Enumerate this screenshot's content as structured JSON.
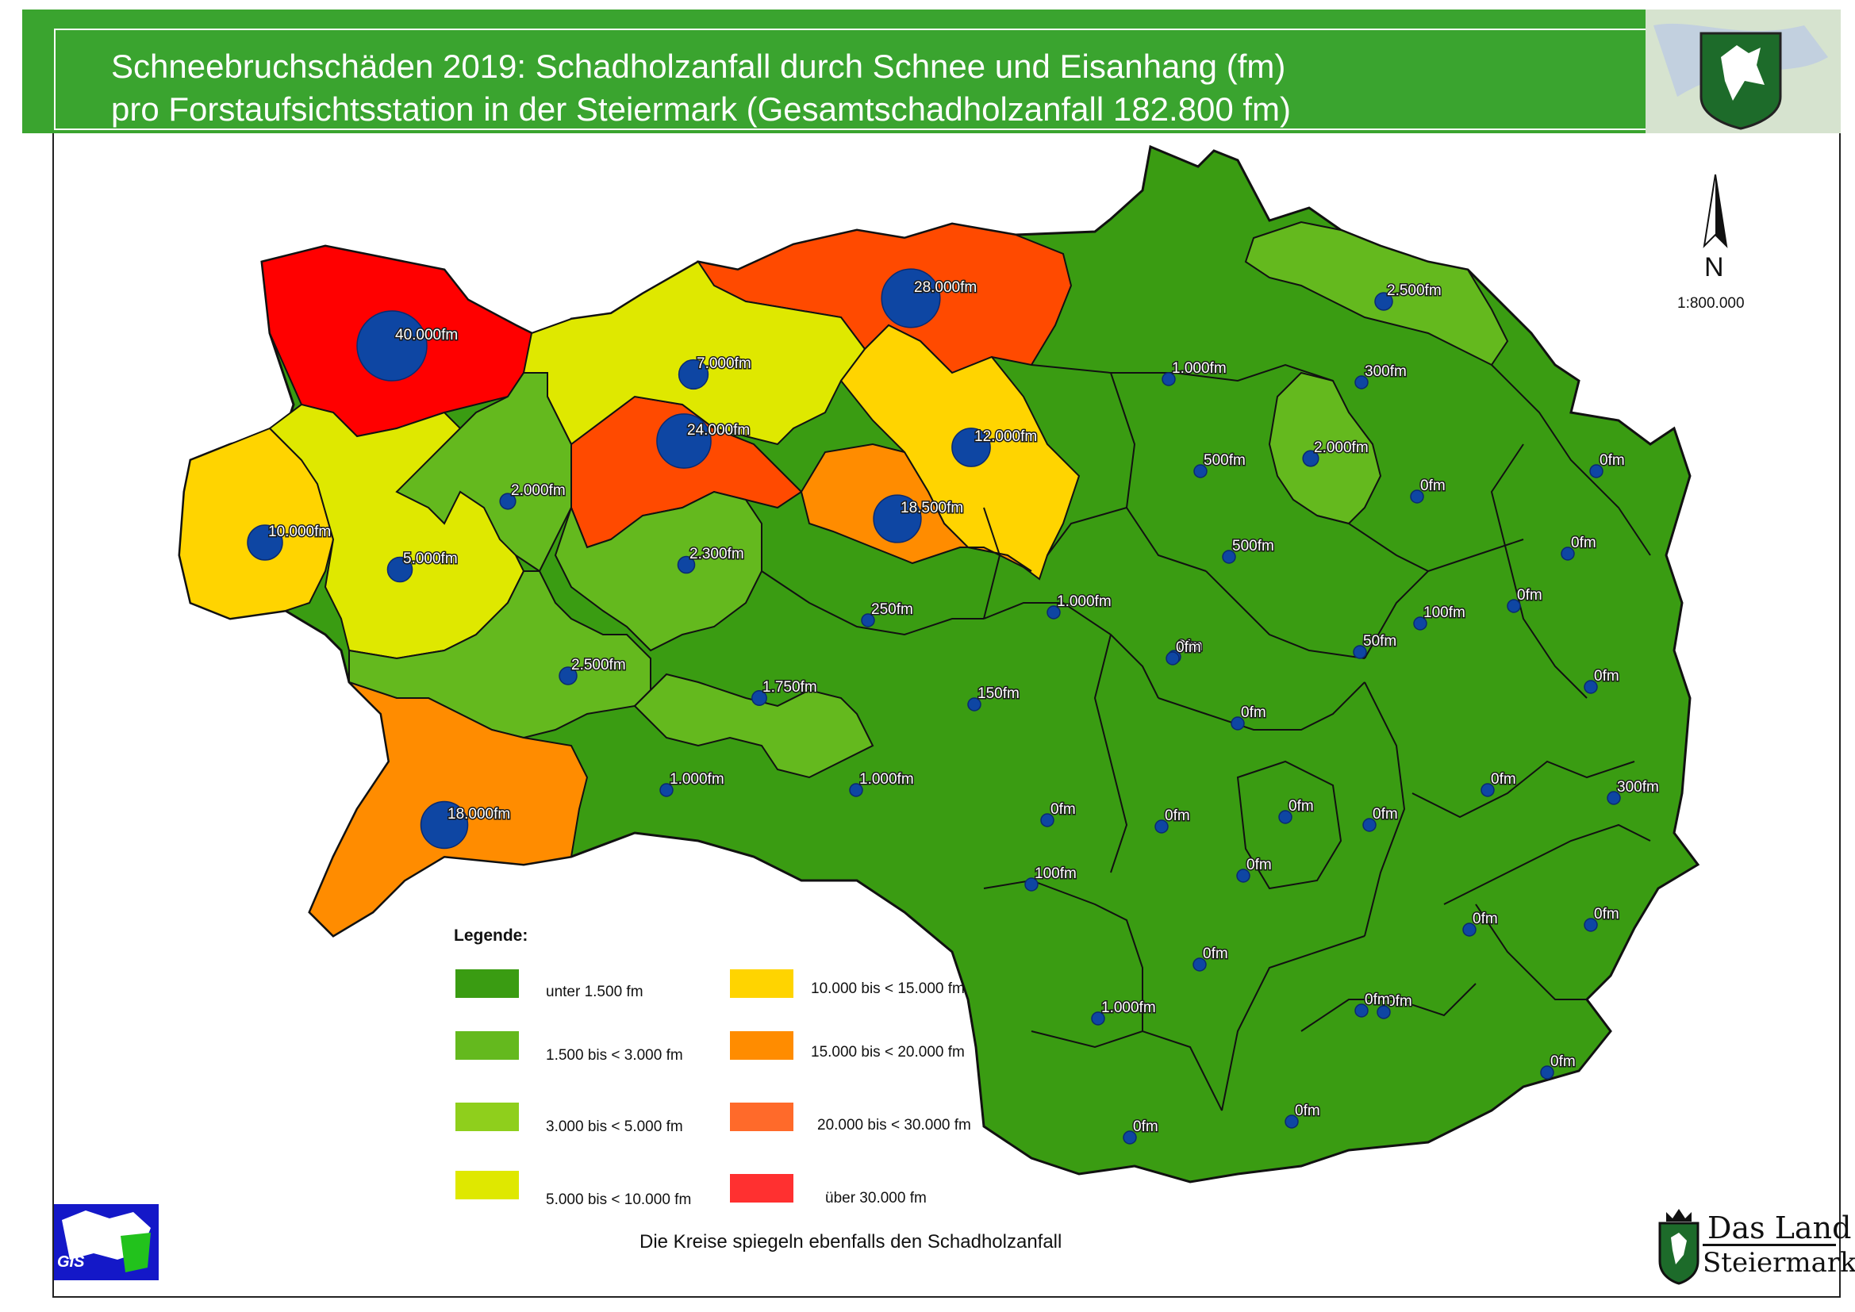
{
  "header": {
    "title_line_1": "Schneebruchschäden 2019: Schadholzanfall durch Schnee und Eisanhang (fm)",
    "title_line_2": "pro Forstaufsichtsstation in der Steiermark (Gesamtschadholzanfall 182.800 fm)"
  },
  "map": {
    "north_label": "N",
    "scale": "1:800.000",
    "colors": {
      "class_1": "#3a9c12",
      "class_2": "#64b91e",
      "class_3": "#8fcf1c",
      "class_4": "#dfe800",
      "class_5": "#ffd400",
      "class_6": "#ff8c00",
      "class_7": "#ff4a00",
      "class_8": "#ff0000",
      "circle": "#0e46a3"
    },
    "stations": [
      {
        "label": "40.000fm",
        "value": 40000,
        "cls": "class_8"
      },
      {
        "label": "28.000fm",
        "value": 28000,
        "cls": "class_7"
      },
      {
        "label": "24.000fm",
        "value": 24000,
        "cls": "class_7"
      },
      {
        "label": "7.000fm",
        "value": 7000,
        "cls": "class_4"
      },
      {
        "label": "12.000fm",
        "value": 12000,
        "cls": "class_5"
      },
      {
        "label": "18.500fm",
        "value": 18500,
        "cls": "class_6"
      },
      {
        "label": "10.000fm",
        "value": 10000,
        "cls": "class_5"
      },
      {
        "label": "5.000fm",
        "value": 5000,
        "cls": "class_4"
      },
      {
        "label": "2.000fm",
        "value": 2000,
        "cls": "class_2"
      },
      {
        "label": "2.300fm",
        "value": 2300,
        "cls": "class_2"
      },
      {
        "label": "2.500fm",
        "value": 2500,
        "cls": "class_2"
      },
      {
        "label": "1.750fm",
        "value": 1750,
        "cls": "class_2"
      },
      {
        "label": "18.000fm",
        "value": 18000,
        "cls": "class_6"
      },
      {
        "label": "1.000fm",
        "value": 1000,
        "cls": "class_1"
      },
      {
        "label": "1.000fm",
        "value": 1000,
        "cls": "class_1"
      },
      {
        "label": "250fm",
        "value": 250,
        "cls": "class_1"
      },
      {
        "label": "150fm",
        "value": 150,
        "cls": "class_1"
      },
      {
        "label": "1.000fm",
        "value": 1000,
        "cls": "class_1"
      },
      {
        "label": "0fm",
        "value": 0,
        "cls": "class_1"
      },
      {
        "label": "2.500fm",
        "value": 2500,
        "cls": "class_2"
      },
      {
        "label": "1.000fm",
        "value": 1000,
        "cls": "class_1"
      },
      {
        "label": "300fm",
        "value": 300,
        "cls": "class_1"
      },
      {
        "label": "500fm",
        "value": 500,
        "cls": "class_1"
      },
      {
        "label": "2.000fm",
        "value": 2000,
        "cls": "class_2"
      },
      {
        "label": "500fm",
        "value": 500,
        "cls": "class_1"
      },
      {
        "label": "0fm",
        "value": 0,
        "cls": "class_1"
      },
      {
        "label": "0fm",
        "value": 0,
        "cls": "class_1"
      },
      {
        "label": "0fm",
        "value": 0,
        "cls": "class_1"
      },
      {
        "label": "0fm",
        "value": 0,
        "cls": "class_1"
      },
      {
        "label": "100fm",
        "value": 100,
        "cls": "class_1"
      },
      {
        "label": "50fm",
        "value": 50,
        "cls": "class_1"
      },
      {
        "label": "0fm",
        "value": 0,
        "cls": "class_1"
      },
      {
        "label": "0fm",
        "value": 0,
        "cls": "class_1"
      },
      {
        "label": "0fm",
        "value": 0,
        "cls": "class_1"
      },
      {
        "label": "0fm",
        "value": 0,
        "cls": "class_1"
      },
      {
        "label": "300fm",
        "value": 300,
        "cls": "class_1"
      },
      {
        "label": "0fm",
        "value": 0,
        "cls": "class_1"
      },
      {
        "label": "0fm",
        "value": 0,
        "cls": "class_1"
      },
      {
        "label": "0fm",
        "value": 0,
        "cls": "class_1"
      },
      {
        "label": "0fm",
        "value": 0,
        "cls": "class_1"
      },
      {
        "label": "0fm",
        "value": 0,
        "cls": "class_1"
      },
      {
        "label": "100fm",
        "value": 100,
        "cls": "class_1"
      },
      {
        "label": "0fm",
        "value": 0,
        "cls": "class_1"
      },
      {
        "label": "0fm",
        "value": 0,
        "cls": "class_1"
      },
      {
        "label": "0fm",
        "value": 0,
        "cls": "class_1"
      },
      {
        "label": "1.000fm",
        "value": 1000,
        "cls": "class_1"
      },
      {
        "label": "0fm",
        "value": 0,
        "cls": "class_1"
      },
      {
        "label": "0fm",
        "value": 0,
        "cls": "class_1"
      },
      {
        "label": "0fm",
        "value": 0,
        "cls": "class_1"
      },
      {
        "label": "0fm",
        "value": 0,
        "cls": "class_1"
      },
      {
        "label": "0fm",
        "value": 0,
        "cls": "class_1"
      }
    ]
  },
  "legend": {
    "title": "Legende:",
    "items": [
      {
        "label": "unter  1.500 fm",
        "color": "#3a9c12"
      },
      {
        "label": "1.500 bis <  3.000 fm",
        "color": "#64b91e"
      },
      {
        "label": "3.000 bis <  5.000 fm",
        "color": "#8fcf1c"
      },
      {
        "label": "5.000 bis < 10.000 fm",
        "color": "#dfe800"
      },
      {
        "label": "10.000 bis < 15.000 fm",
        "color": "#ffd400"
      },
      {
        "label": "15.000 bis < 20.000 fm",
        "color": "#ff8c00"
      },
      {
        "label": "20.000 bis < 30.000 fm",
        "color": "#ff6a2a"
      },
      {
        "label": "über 30.000 fm",
        "color": "#ff3030"
      }
    ]
  },
  "footer": {
    "note": "Die Kreise spiegeln ebenfalls den Schadholzanfall",
    "gis_logo_text": "GIS",
    "land_logo_line_1": "Das Land",
    "land_logo_line_2": "Steiermark"
  }
}
